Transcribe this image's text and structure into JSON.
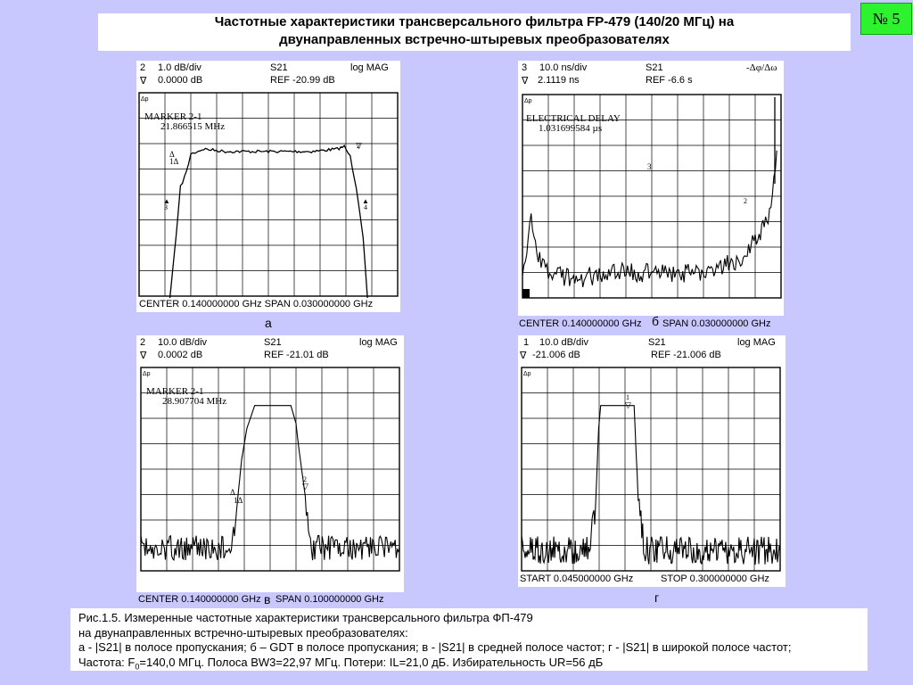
{
  "title": {
    "line1": "Частотные характеристики трансверсального фильтра FP-479 (140/20 МГц)  на",
    "line2": "двунаправленных встречно-штыревых преобразователях"
  },
  "slide_number": "№ 5",
  "panels": {
    "a": {
      "ch": "2",
      "scale": "1.0 dB/div",
      "param": "S21",
      "format": "log  MAG",
      "marker_sym": "∇",
      "marker_val": "0.0000 dB",
      "ref": "REF   -20.99 dB",
      "marker_label": "MARKER 2-1",
      "marker_freq": "21.866515 MHz",
      "footer": "CENTER   0.140000000 GHz   SPAN  0.030000000 GHz",
      "letter": "а"
    },
    "b": {
      "ch": "3",
      "scale": "10.0 ns/div",
      "param": "S21",
      "format": "-Δφ/Δω",
      "marker_sym": "∇",
      "marker_val": "2.1119 ns",
      "ref": "REF    -6.6 s",
      "marker_label": "ELECTRICAL DELAY",
      "marker_freq": "1.031699584 µs",
      "footer_left": "CENTER    0.140000000 GHz",
      "footer_right": "SPAN     0.030000000 GHz",
      "letter": "б"
    },
    "c": {
      "ch": "2",
      "scale": "10.0 dB/div",
      "param": "S21",
      "format": "log  MAG",
      "marker_sym": "∇",
      "marker_val": "0.0002 dB",
      "ref": "REF    -21.01 dB",
      "marker_label": "MARKER 2-1",
      "marker_freq": "28.907704 MHz",
      "footer_left": "CENTER   0.140000000 GHz",
      "footer_right": "SPAN   0.100000000 GHz",
      "letter": "в"
    },
    "d": {
      "ch": "1",
      "scale": "10.0 dB/div",
      "param": "S21",
      "format": "log  MAG",
      "marker_sym": "∇",
      "marker_val": "-21.006 dB",
      "ref": "REF    -21.006 dB",
      "footer_left": "START   0.045000000 GHz",
      "footer_right": "STOP   0.300000000 GHz",
      "letter": "г"
    }
  },
  "caption": {
    "line1": "Рис.1.5. Измеренные частотные характеристики трансверсального фильтра ФП-479",
    "line2": "на двунаправленных встречно-штыревых преобразователях:",
    "line3": "а - |S21| в полосе пропускания; б – GDT в полосе пропускания; в - |S21| в средней полосе частот; г - |S21| в широкой полосе частот;",
    "line4_pre": "Частота: F",
    "line4_sub": "0",
    "line4_post": "=140,0 МГц. Полоса BW3=22,97 МГц. Потери: IL=21,0 дБ. Избирательность UR=56 дБ"
  },
  "chart_data": [
    {
      "type": "line",
      "id": "a",
      "xlabel": "",
      "ylabel": "",
      "x_range_GHz": [
        0.125,
        0.155
      ],
      "y_units": "dB",
      "y_per_div": 1.0,
      "ref_dB": -20.99,
      "grid": true,
      "series": [
        {
          "x": [
            0.1253,
            0.1283,
            0.1293,
            0.1298,
            0.1305,
            0.131,
            0.1325,
            0.135,
            0.14,
            0.145,
            0.148,
            0.1488,
            0.1495,
            0.1502,
            0.151,
            0.1517,
            0.1543
          ],
          "y": [
            -29.0,
            -29.0,
            -25.6,
            -23.7,
            -23.1,
            -22.4,
            -22.2,
            -22.3,
            -22.3,
            -22.3,
            -22.2,
            -22.1,
            -22.5,
            -23.7,
            -25.7,
            -29.0,
            -29.0
          ]
        }
      ]
    },
    {
      "type": "line",
      "id": "b",
      "xlabel": "",
      "ylabel": "",
      "x_range_GHz": [
        0.125,
        0.155
      ],
      "y_units": "ns",
      "y_per_div": 10.0,
      "grid": true,
      "series": [
        {
          "x": [
            0.125,
            0.126,
            0.127,
            0.128,
            0.13,
            0.132,
            0.135,
            0.14,
            0.145,
            0.148,
            0.15,
            0.152,
            0.1535,
            0.1545
          ],
          "y": [
            5,
            30,
            15,
            10,
            8,
            8,
            10,
            10,
            10,
            13,
            15,
            22,
            30,
            58
          ]
        }
      ]
    },
    {
      "type": "line",
      "id": "c",
      "xlabel": "",
      "ylabel": "",
      "x_range_GHz": [
        0.09,
        0.19
      ],
      "y_units": "dB",
      "y_per_div": 10.0,
      "ref_dB": -21.01,
      "grid": true,
      "series": [
        {
          "x": [
            0.09,
            0.125,
            0.127,
            0.129,
            0.131,
            0.134,
            0.14,
            0.148,
            0.15,
            0.151,
            0.154,
            0.156,
            0.19
          ],
          "y": [
            -77,
            -77,
            -62,
            -42,
            -30,
            -21,
            -21,
            -21,
            -28,
            -37,
            -60,
            -77,
            -77
          ]
        }
      ]
    },
    {
      "type": "line",
      "id": "d",
      "xlabel": "",
      "ylabel": "",
      "x_range_GHz": [
        0.045,
        0.3
      ],
      "y_units": "dB",
      "y_per_div": 10.0,
      "ref_dB": -21.006,
      "grid": true,
      "series": [
        {
          "x": [
            0.045,
            0.112,
            0.118,
            0.121,
            0.123,
            0.14,
            0.156,
            0.158,
            0.161,
            0.167,
            0.3
          ],
          "y": [
            -78,
            -78,
            -60,
            -30,
            -21,
            -21,
            -21,
            -40,
            -63,
            -78,
            -78
          ]
        }
      ]
    }
  ]
}
